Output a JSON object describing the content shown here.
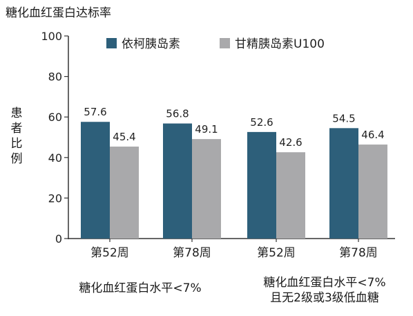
{
  "chart_data": {
    "type": "bar",
    "title": "糖化血红蛋白达标率",
    "ylabel": "患者比例",
    "ylim": [
      0,
      100
    ],
    "yticks": [
      0,
      20,
      40,
      60,
      80,
      100
    ],
    "grid": false,
    "legend_position": "top",
    "categories": [
      "第52周",
      "第78周",
      "第52周",
      "第78周"
    ],
    "groups": [
      {
        "label": "糖化血红蛋白水平<7%",
        "categories": [
          "第52周",
          "第78周"
        ]
      },
      {
        "label": "糖化血红蛋白水平<7%\n且无2级或3级低血糖",
        "categories": [
          "第52周",
          "第78周"
        ]
      }
    ],
    "series": [
      {
        "name": "依柯胰岛素",
        "color": "#2d5f7a",
        "values": [
          57.6,
          56.8,
          52.6,
          54.5
        ]
      },
      {
        "name": "甘精胰岛素U100",
        "color": "#a9a9ab",
        "values": [
          45.4,
          49.1,
          42.6,
          46.4
        ]
      }
    ]
  }
}
